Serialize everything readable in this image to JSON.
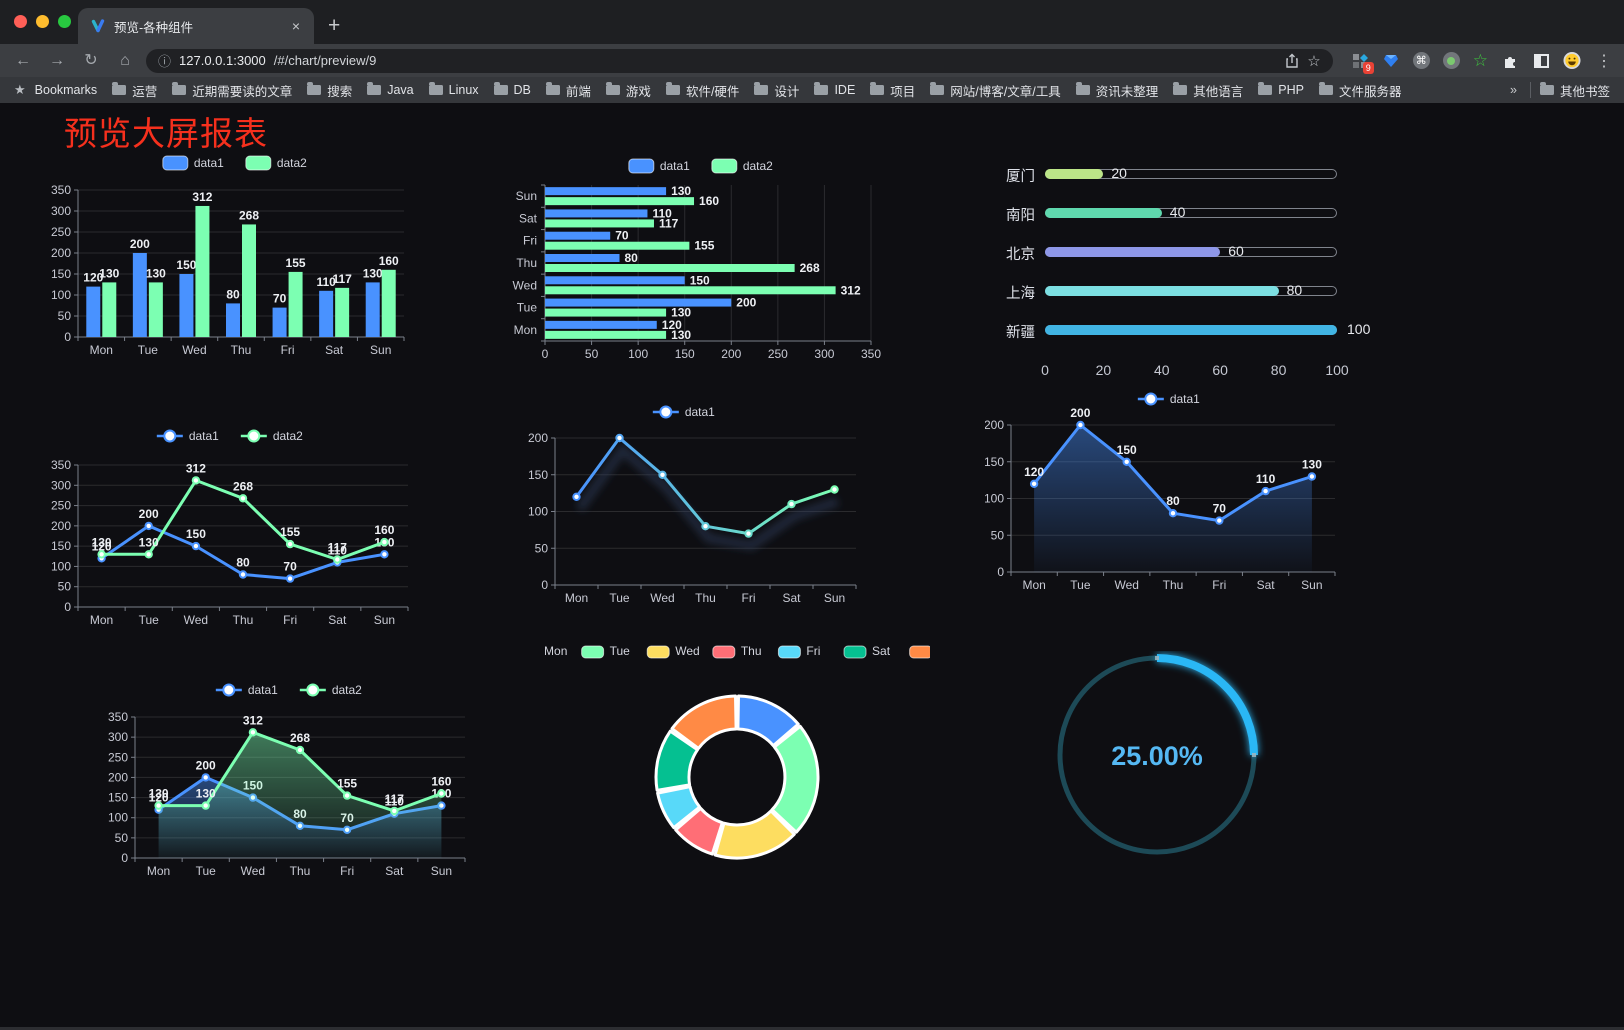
{
  "browser": {
    "tab_title": "预览-各种组件",
    "tab_close": "×",
    "new_tab": "+",
    "url_host": "127.0.0.1:3000",
    "url_path": "/#/chart/preview/9",
    "bookmarks_label": "Bookmarks",
    "bookmarks": [
      "运营",
      "近期需要读的文章",
      "搜索",
      "Java",
      "Linux",
      "DB",
      "前端",
      "游戏",
      "软件/硬件",
      "设计",
      "IDE",
      "项目",
      "网站/博客/文章/工具",
      "资讯未整理",
      "其他语言",
      "PHP",
      "文件服务器"
    ],
    "bookmarks_overflow": "»",
    "other_bookmarks": "其他书签",
    "extension_badge": "9"
  },
  "page": {
    "title": "预览大屏报表",
    "title_color": "#f6301d",
    "background": "#0e0e12"
  },
  "chart_data": [
    {
      "id": "bar-grouped",
      "type": "bar",
      "categories": [
        "Mon",
        "Tue",
        "Wed",
        "Thu",
        "Fri",
        "Sat",
        "Sun"
      ],
      "series": [
        {
          "name": "data1",
          "color": "#4992ff",
          "values": [
            120,
            200,
            150,
            80,
            70,
            110,
            130
          ]
        },
        {
          "name": "data2",
          "color": "#7cffb2",
          "values": [
            130,
            130,
            312,
            268,
            155,
            117,
            160
          ]
        }
      ],
      "ylim": [
        0,
        350
      ],
      "yticks": [
        0,
        50,
        100,
        150,
        200,
        250,
        300,
        350
      ],
      "labels": true,
      "legend_position": "top",
      "grid": true
    },
    {
      "id": "bar-horizontal",
      "type": "bar-horizontal",
      "categories": [
        "Mon",
        "Tue",
        "Wed",
        "Thu",
        "Fri",
        "Sat",
        "Sun"
      ],
      "category_display": "Sun at top, Mon at bottom",
      "series": [
        {
          "name": "data1",
          "color": "#4992ff",
          "values": [
            120,
            200,
            150,
            80,
            70,
            110,
            130
          ]
        },
        {
          "name": "data2",
          "color": "#7cffb2",
          "values": [
            130,
            130,
            312,
            268,
            155,
            117,
            160
          ]
        }
      ],
      "xlim": [
        0,
        350
      ],
      "xticks": [
        0,
        50,
        100,
        150,
        200,
        250,
        300,
        350
      ],
      "labels": true,
      "legend_position": "top"
    },
    {
      "id": "city-progress",
      "type": "bar-horizontal",
      "categories": [
        "厦门",
        "南阳",
        "北京",
        "上海",
        "新疆"
      ],
      "values": [
        20,
        40,
        60,
        80,
        100
      ],
      "colors": [
        "#bce588",
        "#5fd8ae",
        "#8e97e8",
        "#7cdfe2",
        "#41b4e3"
      ],
      "xlim": [
        0,
        100
      ],
      "xticks": [
        0,
        20,
        40,
        60,
        80,
        100
      ],
      "labels": true
    },
    {
      "id": "line-grouped",
      "type": "line",
      "categories": [
        "Mon",
        "Tue",
        "Wed",
        "Thu",
        "Fri",
        "Sat",
        "Sun"
      ],
      "series": [
        {
          "name": "data1",
          "color": "#4992ff",
          "values": [
            120,
            200,
            150,
            80,
            70,
            110,
            130
          ]
        },
        {
          "name": "data2",
          "color": "#7cffb2",
          "values": [
            130,
            130,
            312,
            268,
            155,
            117,
            160
          ]
        }
      ],
      "ylim": [
        0,
        350
      ],
      "yticks": [
        0,
        50,
        100,
        150,
        200,
        250,
        300,
        350
      ],
      "labels": true,
      "legend_position": "top"
    },
    {
      "id": "line-gradient",
      "type": "line",
      "categories": [
        "Mon",
        "Tue",
        "Wed",
        "Thu",
        "Fri",
        "Sat",
        "Sun"
      ],
      "series": [
        {
          "name": "data1",
          "colors": [
            "#4992ff",
            "#7cffb2"
          ],
          "values": [
            120,
            200,
            150,
            80,
            70,
            110,
            130
          ]
        }
      ],
      "ylim": [
        0,
        200
      ],
      "yticks": [
        0,
        50,
        100,
        150,
        200
      ],
      "labels": false,
      "shadow": true,
      "legend_position": "top"
    },
    {
      "id": "area-single",
      "type": "area",
      "categories": [
        "Mon",
        "Tue",
        "Wed",
        "Thu",
        "Fri",
        "Sat",
        "Sun"
      ],
      "series": [
        {
          "name": "data1",
          "color": "#4992ff",
          "values": [
            120,
            200,
            150,
            80,
            70,
            110,
            130
          ]
        }
      ],
      "ylim": [
        0,
        200
      ],
      "yticks": [
        0,
        50,
        100,
        150,
        200
      ],
      "labels": true,
      "legend_position": "top"
    },
    {
      "id": "area-grouped",
      "type": "area",
      "categories": [
        "Mon",
        "Tue",
        "Wed",
        "Thu",
        "Fri",
        "Sat",
        "Sun"
      ],
      "series": [
        {
          "name": "data1",
          "color": "#4992ff",
          "values": [
            120,
            200,
            150,
            80,
            70,
            110,
            130
          ]
        },
        {
          "name": "data2",
          "color": "#7cffb2",
          "values": [
            130,
            130,
            312,
            268,
            155,
            117,
            160
          ]
        }
      ],
      "ylim": [
        0,
        350
      ],
      "yticks": [
        0,
        50,
        100,
        150,
        200,
        250,
        300,
        350
      ],
      "labels": true,
      "legend_position": "top"
    },
    {
      "id": "weekday-donut",
      "type": "pie",
      "categories": [
        "Mon",
        "Tue",
        "Wed",
        "Thu",
        "Fri",
        "Sat",
        "Sun"
      ],
      "values": [
        120,
        200,
        150,
        80,
        70,
        110,
        130
      ],
      "colors": [
        "#4992ff",
        "#7cffb2",
        "#fddd60",
        "#ff6e76",
        "#58d9f9",
        "#05c091",
        "#ff8a45"
      ],
      "donut": true,
      "border_color": "#ffffff",
      "legend_position": "top"
    },
    {
      "id": "percent-gauge",
      "type": "gauge",
      "value": 25,
      "max": 100,
      "label": "25.00%",
      "color": "#2cb7f5",
      "track_color": "#1d4a57",
      "text_color": "#55b8f3"
    }
  ]
}
